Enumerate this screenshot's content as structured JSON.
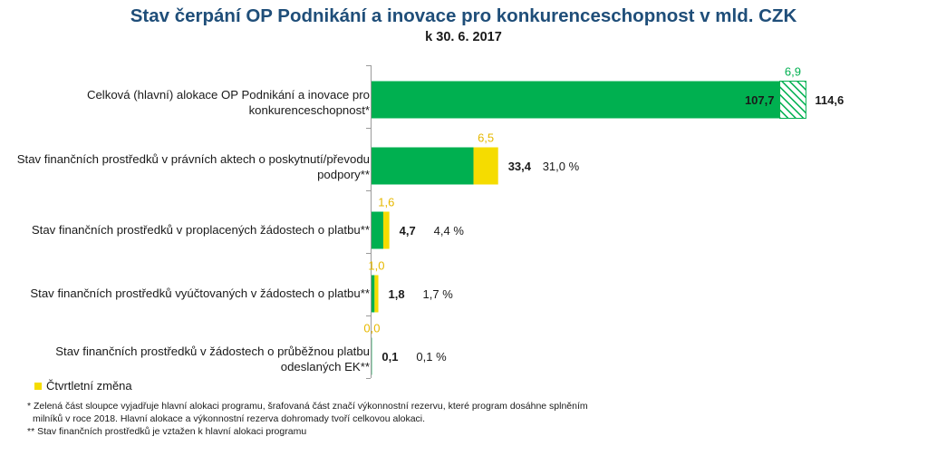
{
  "chart_data": {
    "type": "bar",
    "orientation": "horizontal",
    "title": "Stav čerpání OP Podnikání a inovace pro konkurenceschopnost v mld. CZK",
    "subtitle": "k 30. 6. 2017",
    "categories": [
      "Celková (hlavní) alokace OP Podnikání a inovace pro konkurenceschopnost*",
      "Stav finančních prostředků v právních aktech o poskytnutí/převodu podpory**",
      "Stav finančních prostředků v proplacených žádostech o platbu**",
      "Stav finančních prostředků vyúčtovaných v žádostech o platbu**",
      "Stav finančních prostředků v žádostech o průběžnou platbu odeslaných EK**"
    ],
    "series": [
      {
        "values": [
          107.7,
          26.9,
          3.1,
          0.8,
          0.1
        ]
      },
      {
        "name": "Čtvrtletní změna",
        "values": [
          null,
          6.5,
          1.6,
          1.0,
          0.0
        ]
      },
      {
        "values": [
          6.9,
          null,
          null,
          null,
          null
        ]
      }
    ],
    "data_labels": {
      "base": [
        "107,7",
        "",
        "",
        "",
        ""
      ],
      "change": [
        "6,9",
        "6,5",
        "1,6",
        "1,0",
        "0,0"
      ],
      "total": [
        "114,6",
        "33,4",
        "4,7",
        "1,8",
        "0,1"
      ],
      "percent": [
        "",
        "31,0 %",
        "4,4 %",
        "1,7 %",
        "0,1 %"
      ]
    },
    "totals": [
      114.6,
      33.4,
      4.7,
      1.8,
      0.1
    ],
    "xlim": [
      0,
      114.6
    ],
    "grid": false,
    "legend": "bottom-left",
    "colors": {
      "allocation": "#00b050",
      "change": "#f5dc00",
      "reserve_hatch": "#00b050",
      "reserve_label": "#00b050",
      "change_label": "#e6b800"
    }
  },
  "legend": {
    "label": "Čtvrtletní změna"
  },
  "notes": [
    "*  Zelená část sloupce vyjadřuje hlavní alokaci programu, šrafovaná část značí výkonnostní rezervu, které program dosáhne splněním",
    "milníků v roce 2018.  Hlavní alokace a výkonnostní rezerva dohromady tvoří celkovou alokaci.",
    "** Stav finančních prostředků je vztažen k hlavní alokaci programu"
  ]
}
